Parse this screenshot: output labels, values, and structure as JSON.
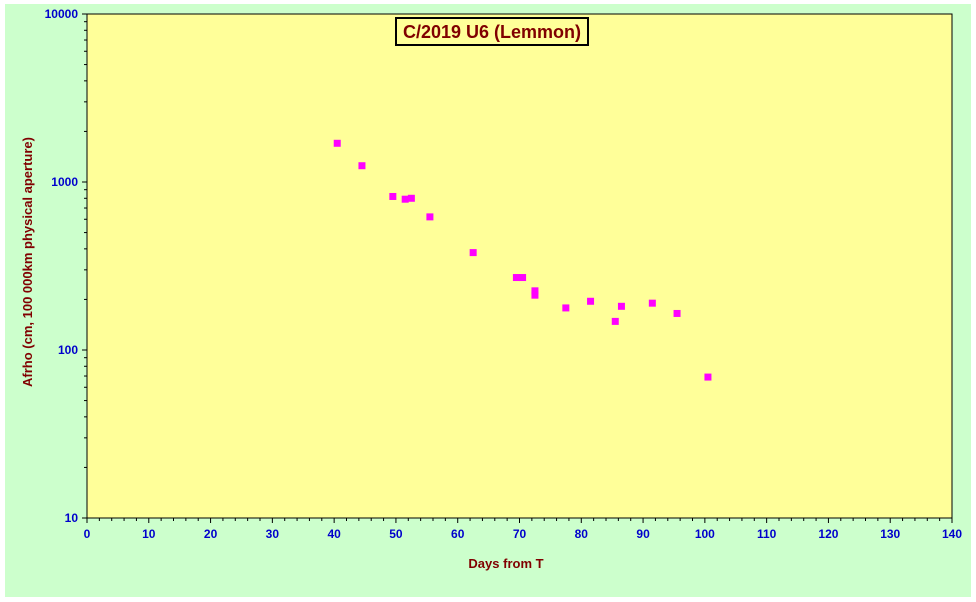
{
  "chart_data": {
    "type": "scatter",
    "title": "C/2019 U6 (Lemmon)",
    "xlabel": "Days from  T",
    "ylabel": "Afrho (cm, 100 000km physical aperture)",
    "xlim": [
      0,
      140
    ],
    "ylim": [
      10,
      10000
    ],
    "yscale": "log",
    "x_ticks": [
      "0",
      "10",
      "20",
      "30",
      "40",
      "50",
      "60",
      "70",
      "80",
      "90",
      "100",
      "110",
      "120",
      "130",
      "140"
    ],
    "y_ticks": [
      "10",
      "100",
      "1000",
      "10000"
    ],
    "grid": false,
    "colors": {
      "outer_background": "#ccffcc",
      "plot_background": "#ffff99",
      "marker": "#ff00ff",
      "tick_labels": "#0000cc",
      "titles": "#800000"
    },
    "series": [
      {
        "marker": "square",
        "points": [
          [
            40.5,
            1700
          ],
          [
            44.5,
            1250
          ],
          [
            49.5,
            820
          ],
          [
            51.5,
            790
          ],
          [
            52.5,
            800
          ],
          [
            55.5,
            620
          ],
          [
            62.5,
            380
          ],
          [
            69.5,
            270
          ],
          [
            70.5,
            270
          ],
          [
            72.5,
            225
          ],
          [
            72.5,
            212
          ],
          [
            77.5,
            178
          ],
          [
            81.5,
            195
          ],
          [
            85.5,
            148
          ],
          [
            86.5,
            182
          ],
          [
            91.5,
            190
          ],
          [
            95.5,
            165
          ],
          [
            100.5,
            69
          ]
        ]
      }
    ]
  }
}
